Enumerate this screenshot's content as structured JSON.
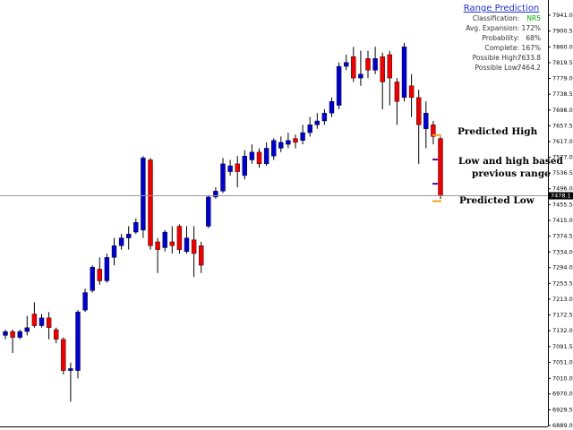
{
  "chart_data": {
    "type": "candlestick",
    "ylim": [
      6889,
      7941
    ],
    "yticks": [
      {
        "value": 7941,
        "label": "7941.0"
      },
      {
        "value": 7900.5,
        "label": "7900.5"
      },
      {
        "value": 7860,
        "label": "7860.0"
      },
      {
        "value": 7819.5,
        "label": "7819.5"
      },
      {
        "value": 7779,
        "label": "7779.0"
      },
      {
        "value": 7738.5,
        "label": "7738.5"
      },
      {
        "value": 7698,
        "label": "7698.0"
      },
      {
        "value": 7657.5,
        "label": "7657.5"
      },
      {
        "value": 7617,
        "label": "7617.0"
      },
      {
        "value": 7577,
        "label": "7577.0"
      },
      {
        "value": 7536.5,
        "label": "7536.5"
      },
      {
        "value": 7496,
        "label": "7496.0"
      },
      {
        "value": 7455.5,
        "label": "7455.5"
      },
      {
        "value": 7415,
        "label": "7415.0"
      },
      {
        "value": 7374.5,
        "label": "7374.5"
      },
      {
        "value": 7334,
        "label": "7334.0"
      },
      {
        "value": 7294,
        "label": "7294.0"
      },
      {
        "value": 7253.5,
        "label": "7253.5"
      },
      {
        "value": 7213,
        "label": "7213.0"
      },
      {
        "value": 7172.5,
        "label": "7172.5"
      },
      {
        "value": 7132,
        "label": "7132.0"
      },
      {
        "value": 7091.5,
        "label": "7091.5"
      },
      {
        "value": 7051,
        "label": "7051.0"
      },
      {
        "value": 7010,
        "label": "7010.0"
      },
      {
        "value": 6970,
        "label": "6970.0"
      },
      {
        "value": 6929.5,
        "label": "6929.5"
      },
      {
        "value": 6889,
        "label": "6889.0"
      }
    ],
    "up_color": "#0000cc",
    "down_color": "#ee0000",
    "open": [
      7120,
      7130,
      7115,
      7130,
      7175,
      7145,
      7165,
      7135,
      7110,
      7030,
      7030,
      7185,
      7235,
      7290,
      7260,
      7320,
      7350,
      7370,
      7385,
      7390,
      7570,
      7360,
      7345,
      7360,
      7400,
      7335,
      7365,
      7350,
      7400,
      7475,
      7490,
      7540,
      7560,
      7530,
      7570,
      7590,
      7560,
      7580,
      7600,
      7610,
      7625,
      7620,
      7640,
      7660,
      7670,
      7690,
      7710,
      7810,
      7835,
      7780,
      7830,
      7800,
      7835,
      7840,
      7770,
      7730,
      7760,
      7730,
      7650,
      7660,
      7625
    ],
    "high": [
      7135,
      7135,
      7135,
      7170,
      7205,
      7175,
      7180,
      7140,
      7115,
      7050,
      7185,
      7240,
      7300,
      7320,
      7330,
      7370,
      7380,
      7400,
      7420,
      7580,
      7575,
      7370,
      7390,
      7400,
      7405,
      7400,
      7400,
      7360,
      7480,
      7500,
      7575,
      7570,
      7580,
      7595,
      7610,
      7600,
      7615,
      7625,
      7630,
      7640,
      7635,
      7660,
      7680,
      7690,
      7700,
      7730,
      7820,
      7840,
      7860,
      7850,
      7850,
      7860,
      7845,
      7850,
      7780,
      7870,
      7790,
      7750,
      7720,
      7670,
      7630
    ],
    "low": [
      7110,
      7075,
      7110,
      7120,
      7140,
      7140,
      7110,
      7100,
      7020,
      6950,
      7010,
      7180,
      7230,
      7250,
      7255,
      7300,
      7340,
      7340,
      7380,
      7370,
      7340,
      7280,
      7335,
      7330,
      7330,
      7330,
      7270,
      7280,
      7395,
      7470,
      7485,
      7530,
      7500,
      7520,
      7560,
      7550,
      7555,
      7570,
      7590,
      7600,
      7600,
      7610,
      7630,
      7650,
      7660,
      7680,
      7700,
      7800,
      7770,
      7760,
      7780,
      7790,
      7700,
      7710,
      7660,
      7720,
      7680,
      7560,
      7600,
      7610,
      7470
    ],
    "close": [
      7130,
      7115,
      7130,
      7140,
      7145,
      7165,
      7140,
      7110,
      7030,
      7035,
      7180,
      7230,
      7295,
      7260,
      7320,
      7350,
      7370,
      7380,
      7410,
      7575,
      7350,
      7340,
      7385,
      7350,
      7340,
      7370,
      7330,
      7300,
      7475,
      7490,
      7560,
      7555,
      7540,
      7580,
      7590,
      7560,
      7600,
      7620,
      7615,
      7620,
      7615,
      7640,
      7660,
      7670,
      7690,
      7720,
      7810,
      7820,
      7780,
      7790,
      7800,
      7830,
      7770,
      7780,
      7720,
      7860,
      7730,
      7660,
      7690,
      7630,
      7478.1
    ],
    "last_price": 7478.1,
    "predicted_high": 7633.8,
    "predicted_low": 7464.2,
    "previous_range_marks": [
      7571,
      7509
    ],
    "annotations": [
      "Predicted High",
      "Low and high based",
      "previous range",
      "Predicted Low"
    ],
    "panel": {
      "title": "Range Prediction",
      "rows": [
        [
          "Classification:",
          "NR5"
        ],
        [
          "Avg. Expansion:",
          "172%"
        ],
        [
          "Probability:",
          "68%"
        ],
        [
          "Complete:",
          "167%"
        ],
        [
          "Possible High:",
          "7633.8"
        ],
        [
          "Possible Low:",
          "7464.2"
        ]
      ]
    }
  }
}
